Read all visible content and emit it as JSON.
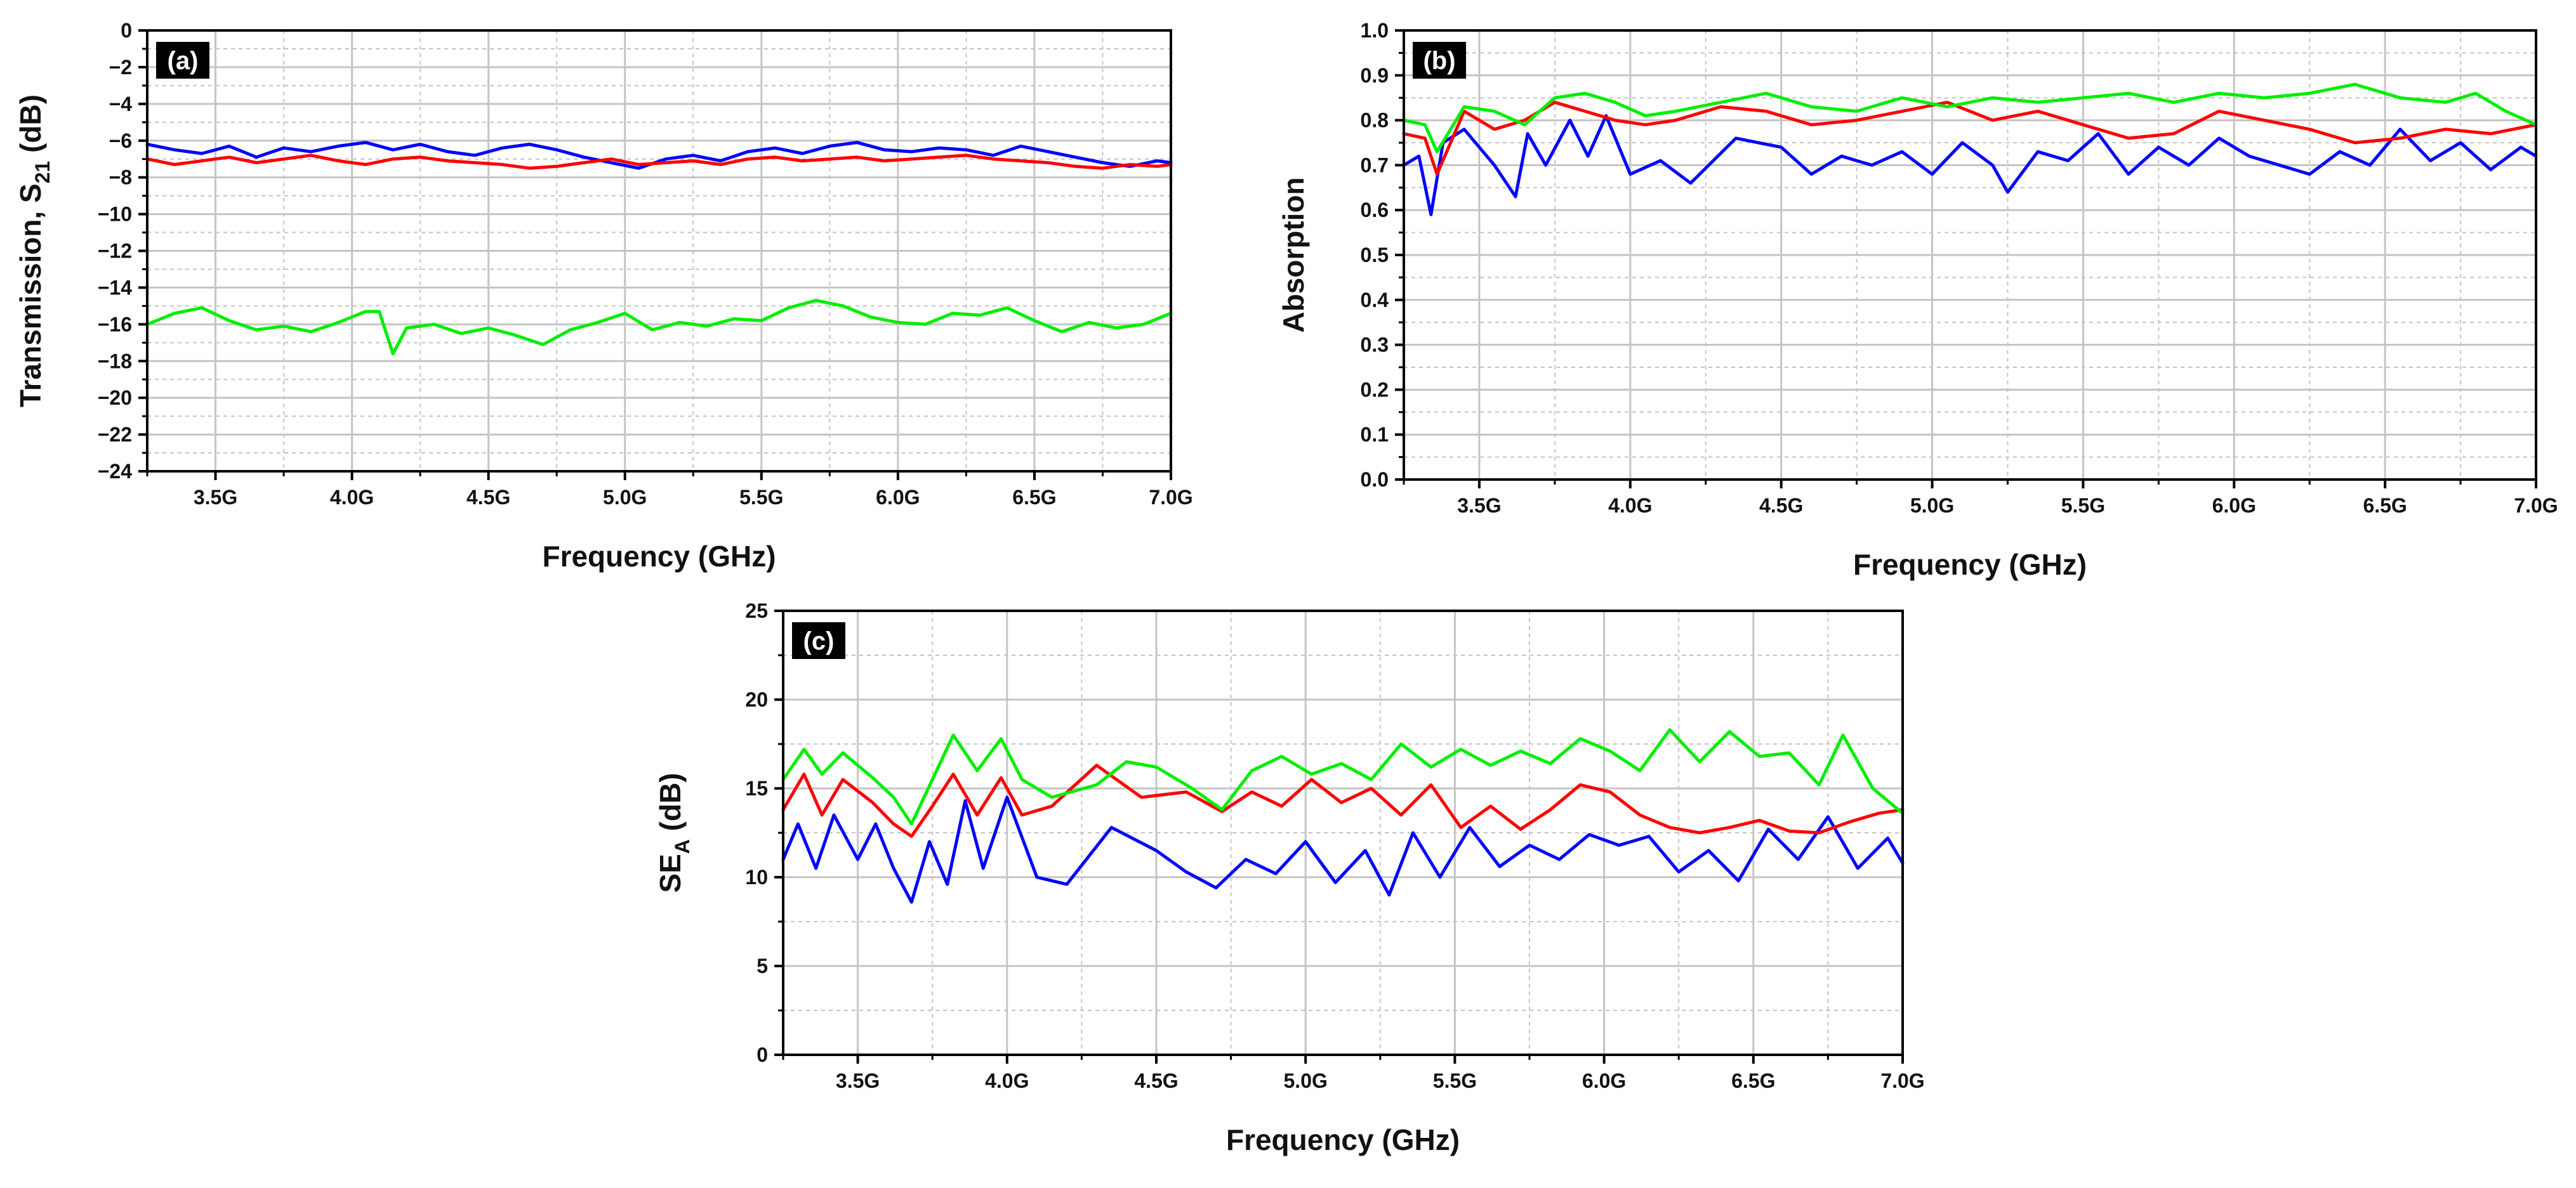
{
  "figure": {
    "background": "#ffffff",
    "grid_color": "#c4c4c4",
    "series_colors": {
      "blue": "#0000ff",
      "red": "#ff0000",
      "green": "#00ee00"
    }
  },
  "chart_data": [
    {
      "id": "a",
      "type": "line",
      "panel_label": "(a)",
      "title": "",
      "xlabel": "Frequency (GHz)",
      "ylabel": "Transmission, S21 (dB)",
      "ylabel_parts": {
        "main": "Transmission, S",
        "sub": "21",
        "tail": " (dB)"
      },
      "xlim": [
        3.25,
        7.0
      ],
      "ylim": [
        -24,
        0
      ],
      "xticks": [
        3.5,
        4.0,
        4.5,
        5.0,
        5.5,
        6.0,
        6.5,
        7.0
      ],
      "xticklabels": [
        "3.5G",
        "4.0G",
        "4.5G",
        "5.0G",
        "5.5G",
        "6.0G",
        "6.5G",
        "7.0G"
      ],
      "yticks": [
        0,
        -2,
        -4,
        -6,
        -8,
        -10,
        -12,
        -14,
        -16,
        -18,
        -20,
        -22,
        -24
      ],
      "yticklabels": [
        "0",
        "−2",
        "−4",
        "−6",
        "−8",
        "−10",
        "−12",
        "−14",
        "−16",
        "−18",
        "−20",
        "−22",
        "−24"
      ],
      "grid": true,
      "series": [
        {
          "name": "blue",
          "color": "#0000ff",
          "x": [
            3.25,
            3.35,
            3.45,
            3.55,
            3.65,
            3.75,
            3.85,
            3.95,
            4.05,
            4.15,
            4.25,
            4.35,
            4.45,
            4.55,
            4.65,
            4.75,
            4.85,
            4.95,
            5.05,
            5.15,
            5.25,
            5.35,
            5.45,
            5.55,
            5.65,
            5.75,
            5.85,
            5.95,
            6.05,
            6.15,
            6.25,
            6.35,
            6.45,
            6.55,
            6.65,
            6.75,
            6.85,
            6.95,
            7.0
          ],
          "y": [
            -6.2,
            -6.5,
            -6.7,
            -6.3,
            -6.9,
            -6.4,
            -6.6,
            -6.3,
            -6.1,
            -6.5,
            -6.2,
            -6.6,
            -6.8,
            -6.4,
            -6.2,
            -6.5,
            -6.9,
            -7.2,
            -7.5,
            -7.0,
            -6.8,
            -7.1,
            -6.6,
            -6.4,
            -6.7,
            -6.3,
            -6.1,
            -6.5,
            -6.6,
            -6.4,
            -6.5,
            -6.8,
            -6.3,
            -6.6,
            -6.9,
            -7.2,
            -7.4,
            -7.1,
            -7.2
          ]
        },
        {
          "name": "red",
          "color": "#ff0000",
          "x": [
            3.25,
            3.35,
            3.45,
            3.55,
            3.65,
            3.75,
            3.85,
            3.95,
            4.05,
            4.15,
            4.25,
            4.35,
            4.45,
            4.55,
            4.65,
            4.75,
            4.85,
            4.95,
            5.05,
            5.15,
            5.25,
            5.35,
            5.45,
            5.55,
            5.65,
            5.75,
            5.85,
            5.95,
            6.05,
            6.15,
            6.25,
            6.35,
            6.45,
            6.55,
            6.65,
            6.75,
            6.85,
            6.95,
            7.0
          ],
          "y": [
            -7.0,
            -7.3,
            -7.1,
            -6.9,
            -7.2,
            -7.0,
            -6.8,
            -7.1,
            -7.3,
            -7.0,
            -6.9,
            -7.1,
            -7.2,
            -7.3,
            -7.5,
            -7.4,
            -7.2,
            -7.0,
            -7.3,
            -7.2,
            -7.1,
            -7.3,
            -7.0,
            -6.9,
            -7.1,
            -7.0,
            -6.9,
            -7.1,
            -7.0,
            -6.9,
            -6.8,
            -7.0,
            -7.1,
            -7.2,
            -7.4,
            -7.5,
            -7.3,
            -7.4,
            -7.3
          ]
        },
        {
          "name": "green",
          "color": "#00ee00",
          "x": [
            3.25,
            3.35,
            3.45,
            3.55,
            3.65,
            3.75,
            3.85,
            3.95,
            4.05,
            4.1,
            4.15,
            4.2,
            4.3,
            4.4,
            4.5,
            4.6,
            4.7,
            4.8,
            4.9,
            5.0,
            5.1,
            5.2,
            5.3,
            5.4,
            5.5,
            5.6,
            5.7,
            5.8,
            5.9,
            6.0,
            6.1,
            6.2,
            6.3,
            6.4,
            6.5,
            6.6,
            6.7,
            6.8,
            6.9,
            7.0
          ],
          "y": [
            -16.0,
            -15.4,
            -15.1,
            -15.8,
            -16.3,
            -16.1,
            -16.4,
            -15.9,
            -15.3,
            -15.3,
            -17.6,
            -16.2,
            -16.0,
            -16.5,
            -16.2,
            -16.6,
            -17.1,
            -16.3,
            -15.9,
            -15.4,
            -16.3,
            -15.9,
            -16.1,
            -15.7,
            -15.8,
            -15.1,
            -14.7,
            -15.0,
            -15.6,
            -15.9,
            -16.0,
            -15.4,
            -15.5,
            -15.1,
            -15.8,
            -16.4,
            -15.9,
            -16.2,
            -16.0,
            -15.4
          ]
        }
      ]
    },
    {
      "id": "b",
      "type": "line",
      "panel_label": "(b)",
      "title": "",
      "xlabel": "Frequency (GHz)",
      "ylabel": "Absorption",
      "xlim": [
        3.25,
        7.0
      ],
      "ylim": [
        0.0,
        1.0
      ],
      "xticks": [
        3.5,
        4.0,
        4.5,
        5.0,
        5.5,
        6.0,
        6.5,
        7.0
      ],
      "xticklabels": [
        "3.5G",
        "4.0G",
        "4.5G",
        "5.0G",
        "5.5G",
        "6.0G",
        "6.5G",
        "7.0G"
      ],
      "yticks": [
        0.0,
        0.1,
        0.2,
        0.3,
        0.4,
        0.5,
        0.6,
        0.7,
        0.8,
        0.9,
        1.0
      ],
      "yticklabels": [
        "0.0",
        "0.1",
        "0.2",
        "0.3",
        "0.4",
        "0.5",
        "0.6",
        "0.7",
        "0.8",
        "0.9",
        "1.0"
      ],
      "grid": true,
      "series": [
        {
          "name": "blue",
          "color": "#0000ff",
          "x": [
            3.25,
            3.3,
            3.34,
            3.38,
            3.45,
            3.55,
            3.62,
            3.66,
            3.72,
            3.8,
            3.86,
            3.92,
            4.0,
            4.1,
            4.2,
            4.35,
            4.5,
            4.6,
            4.7,
            4.8,
            4.9,
            5.0,
            5.1,
            5.2,
            5.25,
            5.35,
            5.45,
            5.55,
            5.65,
            5.75,
            5.85,
            5.95,
            6.05,
            6.15,
            6.25,
            6.35,
            6.45,
            6.55,
            6.65,
            6.75,
            6.85,
            6.95,
            7.0
          ],
          "y": [
            0.7,
            0.72,
            0.59,
            0.75,
            0.78,
            0.7,
            0.63,
            0.77,
            0.7,
            0.8,
            0.72,
            0.81,
            0.68,
            0.71,
            0.66,
            0.76,
            0.74,
            0.68,
            0.72,
            0.7,
            0.73,
            0.68,
            0.75,
            0.7,
            0.64,
            0.73,
            0.71,
            0.77,
            0.68,
            0.74,
            0.7,
            0.76,
            0.72,
            0.7,
            0.68,
            0.73,
            0.7,
            0.78,
            0.71,
            0.75,
            0.69,
            0.74,
            0.72
          ]
        },
        {
          "name": "red",
          "color": "#ff0000",
          "x": [
            3.25,
            3.32,
            3.36,
            3.45,
            3.55,
            3.65,
            3.75,
            3.85,
            3.95,
            4.05,
            4.15,
            4.3,
            4.45,
            4.6,
            4.75,
            4.9,
            5.05,
            5.2,
            5.35,
            5.5,
            5.65,
            5.8,
            5.95,
            6.1,
            6.25,
            6.4,
            6.55,
            6.7,
            6.85,
            7.0
          ],
          "y": [
            0.77,
            0.76,
            0.68,
            0.82,
            0.78,
            0.8,
            0.84,
            0.82,
            0.8,
            0.79,
            0.8,
            0.83,
            0.82,
            0.79,
            0.8,
            0.82,
            0.84,
            0.8,
            0.82,
            0.79,
            0.76,
            0.77,
            0.82,
            0.8,
            0.78,
            0.75,
            0.76,
            0.78,
            0.77,
            0.79
          ]
        },
        {
          "name": "green",
          "color": "#00ee00",
          "x": [
            3.25,
            3.32,
            3.36,
            3.45,
            3.55,
            3.65,
            3.75,
            3.85,
            3.95,
            4.05,
            4.15,
            4.3,
            4.45,
            4.6,
            4.75,
            4.9,
            5.05,
            5.2,
            5.35,
            5.5,
            5.65,
            5.8,
            5.95,
            6.1,
            6.25,
            6.4,
            6.55,
            6.7,
            6.8,
            6.9,
            7.0
          ],
          "y": [
            0.8,
            0.79,
            0.73,
            0.83,
            0.82,
            0.79,
            0.85,
            0.86,
            0.84,
            0.81,
            0.82,
            0.84,
            0.86,
            0.83,
            0.82,
            0.85,
            0.83,
            0.85,
            0.84,
            0.85,
            0.86,
            0.84,
            0.86,
            0.85,
            0.86,
            0.88,
            0.85,
            0.84,
            0.86,
            0.82,
            0.79
          ]
        }
      ]
    },
    {
      "id": "c",
      "type": "line",
      "panel_label": "(c)",
      "title": "",
      "xlabel": "Frequency (GHz)",
      "ylabel": "SEA (dB)",
      "ylabel_parts": {
        "main": "SE",
        "sub": "A",
        "tail": " (dB)"
      },
      "xlim": [
        3.25,
        7.0
      ],
      "ylim": [
        0,
        25
      ],
      "xticks": [
        3.5,
        4.0,
        4.5,
        5.0,
        5.5,
        6.0,
        6.5,
        7.0
      ],
      "xticklabels": [
        "3.5G",
        "4.0G",
        "4.5G",
        "5.0G",
        "5.5G",
        "6.0G",
        "6.5G",
        "7.0G"
      ],
      "yticks": [
        0,
        5,
        10,
        15,
        20,
        25
      ],
      "yticklabels": [
        "0",
        "5",
        "10",
        "15",
        "20",
        "25"
      ],
      "grid": true,
      "series": [
        {
          "name": "blue",
          "color": "#0000ff",
          "x": [
            3.25,
            3.3,
            3.36,
            3.42,
            3.5,
            3.56,
            3.62,
            3.68,
            3.74,
            3.8,
            3.86,
            3.92,
            4.0,
            4.1,
            4.2,
            4.35,
            4.5,
            4.6,
            4.7,
            4.8,
            4.9,
            5.0,
            5.1,
            5.2,
            5.28,
            5.36,
            5.45,
            5.55,
            5.65,
            5.75,
            5.85,
            5.95,
            6.05,
            6.15,
            6.25,
            6.35,
            6.45,
            6.55,
            6.65,
            6.75,
            6.85,
            6.95,
            7.0
          ],
          "y": [
            11.0,
            13.0,
            10.5,
            13.5,
            11.0,
            13.0,
            10.5,
            8.6,
            12.0,
            9.6,
            14.3,
            10.5,
            14.5,
            10.0,
            9.6,
            12.8,
            11.5,
            10.3,
            9.4,
            11.0,
            10.2,
            12.0,
            9.7,
            11.5,
            9.0,
            12.5,
            10.0,
            12.8,
            10.6,
            11.8,
            11.0,
            12.4,
            11.8,
            12.3,
            10.3,
            11.5,
            9.8,
            12.7,
            11.0,
            13.4,
            10.5,
            12.2,
            10.8
          ]
        },
        {
          "name": "red",
          "color": "#ff0000",
          "x": [
            3.25,
            3.32,
            3.38,
            3.45,
            3.55,
            3.62,
            3.68,
            3.75,
            3.82,
            3.9,
            3.98,
            4.05,
            4.15,
            4.3,
            4.45,
            4.6,
            4.72,
            4.82,
            4.92,
            5.02,
            5.12,
            5.22,
            5.32,
            5.42,
            5.52,
            5.62,
            5.72,
            5.82,
            5.92,
            6.02,
            6.12,
            6.22,
            6.32,
            6.42,
            6.52,
            6.62,
            6.72,
            6.82,
            6.92,
            7.0
          ],
          "y": [
            13.8,
            15.8,
            13.5,
            15.5,
            14.2,
            13.0,
            12.3,
            14.0,
            15.8,
            13.5,
            15.6,
            13.5,
            14.0,
            16.3,
            14.5,
            14.8,
            13.7,
            14.8,
            14.0,
            15.5,
            14.2,
            15.0,
            13.5,
            15.2,
            12.8,
            14.0,
            12.7,
            13.8,
            15.2,
            14.8,
            13.5,
            12.8,
            12.5,
            12.8,
            13.2,
            12.6,
            12.5,
            13.1,
            13.6,
            13.8
          ]
        },
        {
          "name": "green",
          "color": "#00ee00",
          "x": [
            3.25,
            3.32,
            3.38,
            3.45,
            3.55,
            3.62,
            3.68,
            3.75,
            3.82,
            3.9,
            3.98,
            4.05,
            4.15,
            4.3,
            4.4,
            4.5,
            4.62,
            4.72,
            4.82,
            4.92,
            5.02,
            5.12,
            5.22,
            5.32,
            5.42,
            5.52,
            5.62,
            5.72,
            5.82,
            5.92,
            6.02,
            6.12,
            6.22,
            6.32,
            6.42,
            6.52,
            6.62,
            6.72,
            6.8,
            6.9,
            7.0
          ],
          "y": [
            15.5,
            17.2,
            15.8,
            17.0,
            15.6,
            14.5,
            13.0,
            15.5,
            18.0,
            16.0,
            17.8,
            15.5,
            14.5,
            15.2,
            16.5,
            16.2,
            15.0,
            13.8,
            16.0,
            16.8,
            15.8,
            16.4,
            15.5,
            17.5,
            16.2,
            17.2,
            16.3,
            17.1,
            16.4,
            17.8,
            17.1,
            16.0,
            18.3,
            16.5,
            18.2,
            16.8,
            17.0,
            15.2,
            18.0,
            15.0,
            13.6
          ]
        }
      ]
    }
  ]
}
